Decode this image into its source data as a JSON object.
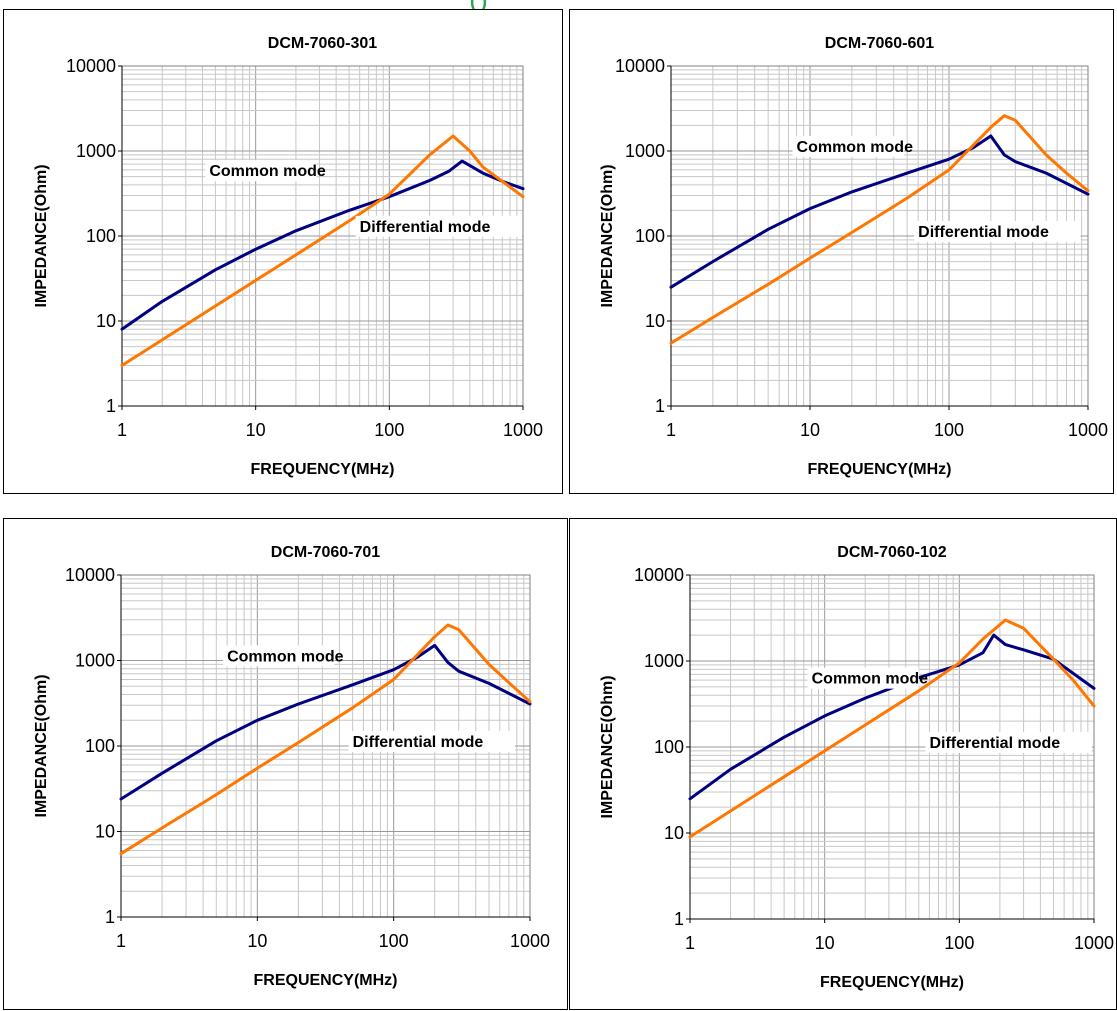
{
  "page": {
    "top_fragment": "(                          )"
  },
  "chart_data": [
    {
      "type": "line",
      "title": "DCM-7060-301",
      "xlabel": "FREQUENCY(MHz)",
      "ylabel": "IMPEDANCE(Ohm)",
      "xscale": "log",
      "yscale": "log",
      "xlim": [
        1,
        1000
      ],
      "ylim": [
        1,
        10000
      ],
      "xticks": [
        "1",
        "10",
        "100",
        "1000"
      ],
      "yticks": [
        "1",
        "10",
        "100",
        "1000",
        "10000"
      ],
      "grid": true,
      "series": [
        {
          "name": "Common mode",
          "color": "#000080",
          "x": [
            1,
            2,
            5,
            10,
            20,
            50,
            100,
            200,
            280,
            350,
            500,
            700,
            1000
          ],
          "y": [
            8,
            17,
            40,
            70,
            115,
            200,
            290,
            450,
            580,
            760,
            550,
            440,
            360
          ]
        },
        {
          "name": "Differential mode",
          "color": "#ff7700",
          "x": [
            1,
            2,
            5,
            10,
            20,
            50,
            100,
            200,
            300,
            400,
            500,
            700,
            1000
          ],
          "y": [
            3,
            6,
            15,
            30,
            60,
            150,
            310,
            900,
            1500,
            1000,
            650,
            440,
            290
          ]
        }
      ],
      "annotations": [
        {
          "text": "Common mode",
          "x": 4.5,
          "y": 520
        },
        {
          "text": "Differential mode",
          "x": 60,
          "y": 115
        }
      ]
    },
    {
      "type": "line",
      "title": "DCM-7060-601",
      "xlabel": "FREQUENCY(MHz)",
      "ylabel": "IMPEDANCE(Ohm)",
      "xscale": "log",
      "yscale": "log",
      "xlim": [
        1,
        1000
      ],
      "ylim": [
        1,
        10000
      ],
      "xticks": [
        "1",
        "10",
        "100",
        "1000"
      ],
      "yticks": [
        "1",
        "10",
        "100",
        "1000",
        "10000"
      ],
      "grid": true,
      "series": [
        {
          "name": "Common mode",
          "color": "#000080",
          "x": [
            1,
            2,
            5,
            10,
            20,
            50,
            100,
            150,
            200,
            250,
            300,
            500,
            1000
          ],
          "y": [
            25,
            50,
            120,
            210,
            330,
            550,
            800,
            1100,
            1500,
            900,
            750,
            550,
            310
          ]
        },
        {
          "name": "Differential mode",
          "color": "#ff7700",
          "x": [
            1,
            2,
            5,
            10,
            20,
            50,
            100,
            200,
            250,
            300,
            500,
            700,
            1000
          ],
          "y": [
            5.5,
            11,
            27,
            55,
            110,
            280,
            600,
            1900,
            2600,
            2300,
            900,
            550,
            340
          ]
        }
      ],
      "annotations": [
        {
          "text": "Common mode",
          "x": 8,
          "y": 1000
        },
        {
          "text": "Differential mode",
          "x": 60,
          "y": 100
        }
      ]
    },
    {
      "type": "line",
      "title": "DCM-7060-701",
      "xlabel": "FREQUENCY(MHz)",
      "ylabel": "IMPEDANCE(Ohm)",
      "xscale": "log",
      "yscale": "log",
      "xlim": [
        1,
        1000
      ],
      "ylim": [
        1,
        10000
      ],
      "xticks": [
        "1",
        "10",
        "100",
        "1000"
      ],
      "yticks": [
        "1",
        "10",
        "100",
        "1000",
        "10000"
      ],
      "grid": true,
      "series": [
        {
          "name": "Common mode",
          "color": "#000080",
          "x": [
            1,
            2,
            5,
            10,
            20,
            50,
            100,
            150,
            200,
            250,
            300,
            500,
            1000
          ],
          "y": [
            24,
            48,
            115,
            200,
            310,
            520,
            780,
            1100,
            1500,
            950,
            750,
            540,
            310
          ]
        },
        {
          "name": "Differential mode",
          "color": "#ff7700",
          "x": [
            1,
            2,
            5,
            10,
            20,
            50,
            100,
            200,
            250,
            300,
            500,
            700,
            1000
          ],
          "y": [
            5.5,
            11,
            27,
            55,
            110,
            280,
            600,
            1900,
            2600,
            2300,
            900,
            550,
            330
          ]
        }
      ],
      "annotations": [
        {
          "text": "Common mode",
          "x": 6,
          "y": 1000
        },
        {
          "text": "Differential mode",
          "x": 50,
          "y": 100
        }
      ]
    },
    {
      "type": "line",
      "title": "DCM-7060-102",
      "xlabel": "FREQUENCY(MHz)",
      "ylabel": "IMPEDANCE(Ohm)",
      "xscale": "log",
      "yscale": "log",
      "xlim": [
        1,
        1000
      ],
      "ylim": [
        1,
        10000
      ],
      "xticks": [
        "1",
        "10",
        "100",
        "1000"
      ],
      "yticks": [
        "1",
        "10",
        "100",
        "1000",
        "10000"
      ],
      "grid": true,
      "series": [
        {
          "name": "Common mode",
          "color": "#000080",
          "x": [
            1,
            2,
            5,
            10,
            20,
            50,
            100,
            150,
            180,
            220,
            300,
            500,
            1000
          ],
          "y": [
            25,
            55,
            130,
            230,
            370,
            640,
            900,
            1250,
            2000,
            1550,
            1350,
            1050,
            480
          ]
        },
        {
          "name": "Differential mode",
          "color": "#ff7700",
          "x": [
            1,
            2,
            5,
            10,
            20,
            50,
            100,
            150,
            220,
            300,
            500,
            700,
            1000
          ],
          "y": [
            9,
            18,
            45,
            90,
            180,
            450,
            950,
            1800,
            3000,
            2400,
            1050,
            600,
            300
          ]
        }
      ],
      "annotations": [
        {
          "text": "Common mode",
          "x": 8,
          "y": 560
        },
        {
          "text": "Differential mode",
          "x": 60,
          "y": 100
        }
      ]
    }
  ]
}
